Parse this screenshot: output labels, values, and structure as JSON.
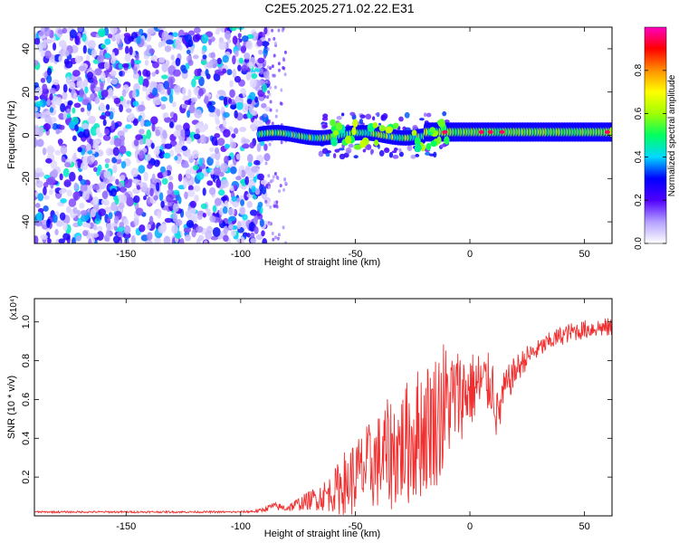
{
  "chart_data": [
    {
      "type": "heatmap",
      "title": "C2E5.2025.271.02.22.E31",
      "xlabel": "Height of straight line (km)",
      "ylabel": "Frequency (Hz)",
      "xlim": [
        -190,
        62
      ],
      "ylim": [
        -50,
        50
      ],
      "x_ticks": [
        "-150",
        "-100",
        "-50",
        "0",
        "50"
      ],
      "y_ticks": [
        "40",
        "20",
        "0",
        "-20",
        "-40"
      ],
      "colorbar": {
        "label": "Normalized spectral amplitude",
        "range": [
          0,
          1
        ],
        "ticks": [
          "0.0",
          "0.2",
          "0.4",
          "0.6",
          "0.8"
        ],
        "colors": [
          "#ffffff",
          "#b4a0ff",
          "#5000ff",
          "#0000ff",
          "#00d8ff",
          "#00ff60",
          "#a0ff00",
          "#ffff00",
          "#ff9000",
          "#ff0000",
          "#ff00c0"
        ]
      },
      "features": {
        "noise_region_x": [
          -190,
          -90
        ],
        "sparse_region_x": [
          -90,
          -80
        ],
        "band_center_freq_hz": 1,
        "band_start_x": -92,
        "band_strong_from_x": -12,
        "band_amplitude": 0.6,
        "peak_amplitude": 0.95
      }
    },
    {
      "type": "line",
      "xlabel": "Height of straight line (km)",
      "ylabel": "SNR (10 * v/v)",
      "y_scale_label": "(x10⁴)",
      "xlim": [
        -190,
        62
      ],
      "ylim": [
        0,
        1.12
      ],
      "x_ticks": [
        "-150",
        "-100",
        "-50",
        "0",
        "50"
      ],
      "y_ticks": [
        "0.2",
        "0.4",
        "0.6",
        "0.8",
        "1.0"
      ],
      "color": "#f03030",
      "series": [
        {
          "x": [
            -190,
            -100,
            -92,
            -86,
            -80,
            -70,
            -60,
            -55,
            -50,
            -45,
            -40,
            -35,
            -30,
            -25,
            -20,
            -15,
            -12,
            -10,
            -5,
            0,
            5,
            10,
            12,
            15,
            20,
            25,
            30,
            35,
            40,
            45,
            50,
            55,
            62
          ],
          "y": [
            0.02,
            0.02,
            0.025,
            0.05,
            0.04,
            0.08,
            0.12,
            0.16,
            0.2,
            0.25,
            0.28,
            0.32,
            0.35,
            0.4,
            0.45,
            0.5,
            0.55,
            0.58,
            0.62,
            0.65,
            0.68,
            0.68,
            0.5,
            0.65,
            0.75,
            0.82,
            0.86,
            0.9,
            0.93,
            0.95,
            0.96,
            0.97,
            0.97
          ],
          "noise_amplitude": [
            0.005,
            0.005,
            0.01,
            0.02,
            0.02,
            0.05,
            0.1,
            0.18,
            0.2,
            0.22,
            0.25,
            0.3,
            0.3,
            0.35,
            0.35,
            0.35,
            0.4,
            0.3,
            0.25,
            0.2,
            0.18,
            0.15,
            0.15,
            0.1,
            0.08,
            0.06,
            0.05,
            0.05,
            0.05,
            0.05,
            0.05,
            0.05,
            0.05
          ]
        }
      ]
    }
  ]
}
